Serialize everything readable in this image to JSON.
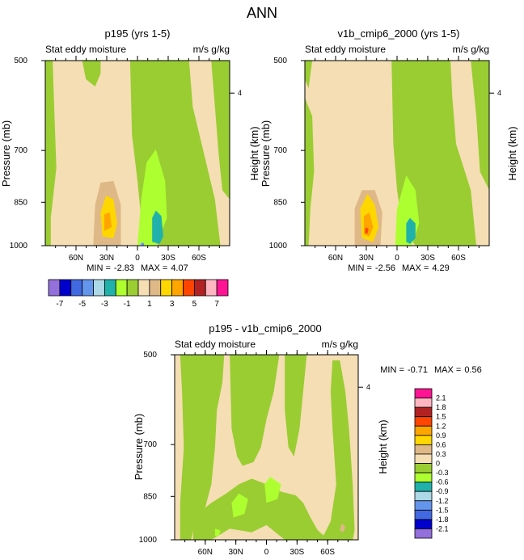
{
  "figure_title": "ANN",
  "chart_data": [
    {
      "type": "heatmap",
      "panel": "top-left",
      "title": "p195 (yrs 1-5)",
      "variable": "Stat eddy moisture",
      "units": "m/s g/kg",
      "ylabel": "Pressure (mb)",
      "ylabel_right": "Height (km)",
      "x_ticks": [
        "60N",
        "30N",
        "0",
        "30S",
        "60S"
      ],
      "x_tick_values": [
        60,
        30,
        0,
        -30,
        -60
      ],
      "xlim": [
        90,
        -90
      ],
      "y_ticks": [
        "500",
        "700",
        "850",
        "1000"
      ],
      "y_tick_values": [
        500,
        700,
        850,
        1000
      ],
      "ylim": [
        1000,
        500
      ],
      "right_ticks": [
        "4"
      ],
      "right_tick_values": [
        4
      ],
      "min_label": "MIN =",
      "min": "-2.83",
      "max_label": "MAX =",
      "max": "4.07"
    },
    {
      "type": "heatmap",
      "panel": "top-right",
      "title": "v1b_cmip6_2000 (yrs 1-5)",
      "variable": "Stat eddy moisture",
      "units": "m/s g/kg",
      "ylabel": "Pressure (mb)",
      "ylabel_right": "Height (km)",
      "x_ticks": [
        "60N",
        "30N",
        "0",
        "30S",
        "60S"
      ],
      "x_tick_values": [
        60,
        30,
        0,
        -30,
        -60
      ],
      "xlim": [
        90,
        -90
      ],
      "y_ticks": [
        "500",
        "700",
        "850",
        "1000"
      ],
      "y_tick_values": [
        500,
        700,
        850,
        1000
      ],
      "ylim": [
        1000,
        500
      ],
      "right_ticks": [
        "4"
      ],
      "right_tick_values": [
        4
      ],
      "min_label": "MIN =",
      "min": "-2.56",
      "max_label": "MAX =",
      "max": "4.29"
    },
    {
      "type": "heatmap",
      "panel": "bottom",
      "title": "p195 - v1b_cmip6_2000",
      "variable": "Stat eddy moisture",
      "units": "m/s g/kg",
      "ylabel": "Pressure (mb)",
      "ylabel_right": "Height (km)",
      "x_ticks": [
        "60N",
        "30N",
        "0",
        "30S",
        "60S"
      ],
      "x_tick_values": [
        60,
        30,
        0,
        -30,
        -60
      ],
      "xlim": [
        90,
        -90
      ],
      "y_ticks": [
        "500",
        "700",
        "850",
        "1000"
      ],
      "y_tick_values": [
        500,
        700,
        850,
        1000
      ],
      "ylim": [
        1000,
        500
      ],
      "right_ticks": [
        "4"
      ],
      "right_tick_values": [
        4
      ],
      "min_label": "MIN =",
      "min": "-0.71",
      "max_label": "MAX =",
      "max": "0.56"
    }
  ],
  "colorbar_top": {
    "orientation": "horizontal",
    "colors": [
      "#9370db",
      "#0000cd",
      "#4169e1",
      "#6495ed",
      "#add8e6",
      "#20b2aa",
      "#adff2f",
      "#9acd32",
      "#f5deb3",
      "#deb887",
      "#ffd700",
      "#ffa500",
      "#ff4500",
      "#b22222",
      "#ffb6c1",
      "#ff1493"
    ],
    "labels": [
      "-7",
      "-5",
      "-3",
      "-1",
      "1",
      "3",
      "5",
      "7"
    ]
  },
  "colorbar_bottom": {
    "orientation": "vertical",
    "colors": [
      "#ff1493",
      "#ffb6c1",
      "#b22222",
      "#ff4500",
      "#ffa500",
      "#ffd700",
      "#deb887",
      "#f5deb3",
      "#9acd32",
      "#adff2f",
      "#20b2aa",
      "#add8e6",
      "#6495ed",
      "#4169e1",
      "#0000cd",
      "#9370db"
    ],
    "labels": [
      "2.1",
      "1.8",
      "1.5",
      "1.2",
      "0.9",
      "0.6",
      "0.3",
      "0",
      "-0.3",
      "-0.6",
      "-0.9",
      "-1.2",
      "-1.5",
      "-1.8",
      "-2.1"
    ]
  },
  "palette": {
    "tan": "#f5deb3",
    "green": "#9acd32",
    "light_green": "#adff2f",
    "burlywood": "#deb887",
    "gold": "#ffd700",
    "orange": "#ffa500",
    "red_orange": "#ff4500",
    "teal": "#20b2aa",
    "light_blue": "#add8e6",
    "corn_blue": "#6495ed"
  }
}
